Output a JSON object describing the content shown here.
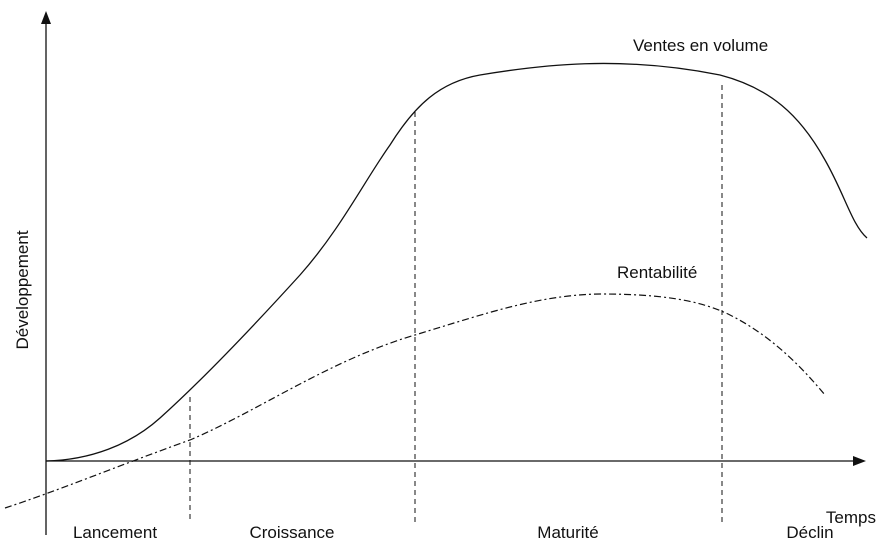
{
  "curves": {
    "sales": "Ventes en volume",
    "profit": "Rentabilité"
  },
  "axes": {
    "y_label": "Développement",
    "x_label": "Temps"
  },
  "phases": [
    "Lancement",
    "Croissance",
    "Maturité",
    "Déclin"
  ]
}
